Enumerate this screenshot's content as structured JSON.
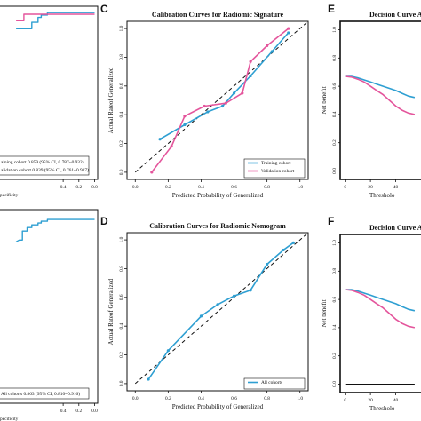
{
  "colors": {
    "training": "#2e9fd2",
    "validation": "#e4559c",
    "all": "#2e9fd2",
    "reference": "#111111",
    "axis": "#111111"
  },
  "chart_data": [
    {
      "id": "A",
      "panel_label": "",
      "type": "line",
      "title": "",
      "xlabel": "pecificity",
      "ylabel": "",
      "x_tick_labels": [
        "0.4",
        "0.2",
        "0.0"
      ],
      "legend": [
        "aining cohort 0.859 (95% CI, 0.787~0.932)",
        "alidation cohort 0.839 (95% CI, 0.761~0.917)"
      ],
      "series": [
        {
          "key": "training",
          "x": [
            1.0,
            0.95,
            0.8,
            0.8,
            0.72,
            0.72,
            0.68,
            0.68,
            0.6,
            0.6,
            0.0
          ],
          "y": [
            0.9,
            0.9,
            0.9,
            0.94,
            0.94,
            0.97,
            0.97,
            0.985,
            0.985,
            1.0,
            1.0
          ]
        },
        {
          "key": "validation",
          "x": [
            1.0,
            0.95,
            0.9,
            0.9,
            0.0
          ],
          "y": [
            0.95,
            0.95,
            0.95,
            0.99,
            0.99
          ]
        }
      ]
    },
    {
      "id": "B",
      "panel_label": "",
      "type": "line",
      "title": "",
      "xlabel": "pecificity",
      "ylabel": "",
      "x_tick_labels": [
        "0.4",
        "0.2",
        "0.0"
      ],
      "legend": [
        "All cohorts 0.863 (95% CI, 0.810~0.916)"
      ],
      "series": [
        {
          "key": "all",
          "x": [
            1.0,
            0.96,
            0.92,
            0.92,
            0.86,
            0.86,
            0.8,
            0.8,
            0.72,
            0.72,
            0.68,
            0.68,
            0.6,
            0.6,
            0.0
          ],
          "y": [
            0.86,
            0.87,
            0.87,
            0.92,
            0.92,
            0.94,
            0.94,
            0.955,
            0.955,
            0.965,
            0.965,
            0.975,
            0.975,
            0.985,
            0.985
          ]
        }
      ]
    },
    {
      "id": "C",
      "panel_label": "C",
      "type": "line",
      "title": "Calibration Curves for Radiomic Signature",
      "xlabel": "Predicted Probability of Generalized",
      "ylabel": "Actual Rateof Generalized",
      "xlim": [
        -0.05,
        1.05
      ],
      "ylim": [
        -0.05,
        1.05
      ],
      "x_ticks": [
        0.0,
        0.2,
        0.4,
        0.6,
        0.8,
        1.0
      ],
      "y_ticks": [
        0.0,
        0.2,
        0.4,
        0.6,
        0.8,
        1.0
      ],
      "x_tick_labels": [
        "0.0",
        "0.2",
        "0.4",
        "0.6",
        "0.8",
        "1.0"
      ],
      "y_tick_labels": [
        "0.0",
        "0.2",
        "0.4",
        "0.6",
        "0.8",
        "1.0"
      ],
      "reference_line": true,
      "legend_position": "bottom-right",
      "series": [
        {
          "key": "training",
          "name": "Training cohort",
          "x": [
            0.15,
            0.3,
            0.44,
            0.53,
            0.6,
            0.7,
            0.83,
            0.93
          ],
          "y": [
            0.23,
            0.33,
            0.42,
            0.46,
            0.55,
            0.67,
            0.84,
            0.97
          ]
        },
        {
          "key": "validation",
          "name": "Validation cohort",
          "x": [
            0.1,
            0.22,
            0.3,
            0.42,
            0.55,
            0.65,
            0.7,
            0.8,
            0.93
          ],
          "y": [
            0.0,
            0.18,
            0.39,
            0.46,
            0.48,
            0.55,
            0.77,
            0.88,
            1.0
          ]
        }
      ]
    },
    {
      "id": "D",
      "panel_label": "D",
      "type": "line",
      "title": "Calibration Curves for Radiomic Nomogram",
      "xlabel": "Predicted Probability of Generalized",
      "ylabel": "Actual Rateof Generalized",
      "xlim": [
        -0.05,
        1.05
      ],
      "ylim": [
        -0.05,
        1.05
      ],
      "x_ticks": [
        0.0,
        0.2,
        0.4,
        0.6,
        0.8,
        1.0
      ],
      "y_ticks": [
        0.0,
        0.2,
        0.4,
        0.6,
        0.8,
        1.0
      ],
      "x_tick_labels": [
        "0.0",
        "0.2",
        "0.4",
        "0.6",
        "0.8",
        "1.0"
      ],
      "y_tick_labels": [
        "0.0",
        "0.2",
        "0.4",
        "0.6",
        "0.8",
        "1.0"
      ],
      "reference_line": true,
      "legend_position": "bottom-right",
      "series": [
        {
          "key": "all",
          "name": "All cohorts",
          "x": [
            0.08,
            0.2,
            0.4,
            0.5,
            0.6,
            0.7,
            0.8,
            0.9,
            0.96
          ],
          "y": [
            0.03,
            0.23,
            0.47,
            0.55,
            0.61,
            0.65,
            0.83,
            0.93,
            0.98
          ]
        }
      ]
    },
    {
      "id": "E",
      "panel_label": "E",
      "type": "line",
      "title": "Decision Curve Analy",
      "xlabel": "Thresholo",
      "ylabel": "Net benefit",
      "x_ticks": [
        0.0,
        0.2,
        0.4
      ],
      "x_tick_labels": [
        "0",
        "20",
        "40"
      ],
      "y_ticks": [
        0.0,
        0.2,
        0.4,
        0.6,
        0.8,
        1.0
      ],
      "y_tick_labels": [
        "0.0",
        "0.2",
        "0.4",
        "0.6",
        "0.8",
        "1.0"
      ],
      "series": [
        {
          "key": "training",
          "x": [
            0.0,
            0.05,
            0.1,
            0.15,
            0.2,
            0.25,
            0.3,
            0.35,
            0.4,
            0.45,
            0.5,
            0.55
          ],
          "y": [
            0.67,
            0.67,
            0.66,
            0.645,
            0.63,
            0.615,
            0.6,
            0.585,
            0.57,
            0.55,
            0.53,
            0.52
          ]
        },
        {
          "key": "validation",
          "x": [
            0.0,
            0.05,
            0.1,
            0.15,
            0.2,
            0.25,
            0.3,
            0.35,
            0.4,
            0.45,
            0.5,
            0.55
          ],
          "y": [
            0.67,
            0.665,
            0.65,
            0.63,
            0.6,
            0.57,
            0.54,
            0.5,
            0.46,
            0.43,
            0.41,
            0.4
          ]
        },
        {
          "key": "reference",
          "x": [
            0.0,
            0.55
          ],
          "y": [
            0.0,
            0.0
          ]
        }
      ]
    },
    {
      "id": "F",
      "panel_label": "F",
      "type": "line",
      "title": "Decision Curve Analy",
      "xlabel": "Thresholo",
      "ylabel": "Net benefit",
      "x_ticks": [
        0.0,
        0.2,
        0.4
      ],
      "x_tick_labels": [
        "0",
        "20",
        "40"
      ],
      "y_ticks": [
        0.0,
        0.2,
        0.4,
        0.6,
        0.8,
        1.0
      ],
      "y_tick_labels": [
        "0.0",
        "0.2",
        "0.4",
        "0.6",
        "0.8",
        "1.0"
      ],
      "series": [
        {
          "key": "training",
          "x": [
            0.0,
            0.05,
            0.1,
            0.15,
            0.2,
            0.25,
            0.3,
            0.35,
            0.4,
            0.45,
            0.5,
            0.55
          ],
          "y": [
            0.67,
            0.67,
            0.66,
            0.645,
            0.63,
            0.615,
            0.6,
            0.585,
            0.57,
            0.55,
            0.53,
            0.52
          ]
        },
        {
          "key": "validation",
          "x": [
            0.0,
            0.05,
            0.1,
            0.15,
            0.2,
            0.25,
            0.3,
            0.35,
            0.4,
            0.45,
            0.5,
            0.55
          ],
          "y": [
            0.67,
            0.665,
            0.65,
            0.63,
            0.6,
            0.57,
            0.54,
            0.5,
            0.46,
            0.43,
            0.41,
            0.4
          ]
        },
        {
          "key": "reference",
          "x": [
            0.0,
            0.55
          ],
          "y": [
            0.0,
            0.0
          ]
        }
      ]
    }
  ]
}
